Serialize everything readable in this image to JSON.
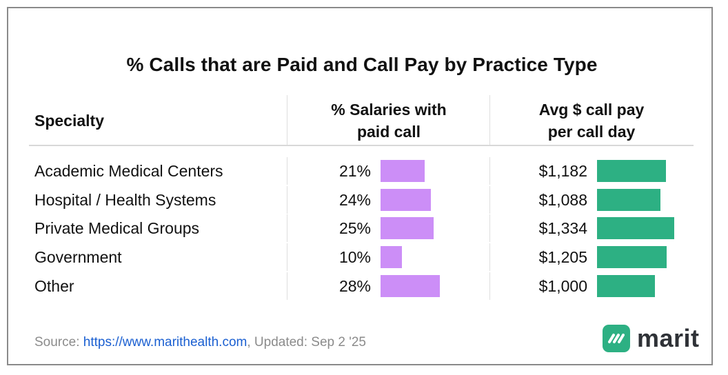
{
  "title": "% Calls that are Paid and Call Pay by Practice Type",
  "columns": {
    "specialty": "Specialty",
    "pct_line1": "% Salaries with",
    "pct_line2": "paid call",
    "pay_line1": "Avg $ call pay",
    "pay_line2": "per call day"
  },
  "rows": [
    {
      "specialty": "Academic Medical Centers",
      "pct_label": "21%",
      "pay_label": "$1,182"
    },
    {
      "specialty": "Hospital / Health Systems",
      "pct_label": "24%",
      "pay_label": "$1,088"
    },
    {
      "specialty": "Private Medical Groups",
      "pct_label": "25%",
      "pay_label": "$1,334"
    },
    {
      "specialty": "Government",
      "pct_label": "10%",
      "pay_label": "$1,205"
    },
    {
      "specialty": "Other",
      "pct_label": "28%",
      "pay_label": "$1,000"
    }
  ],
  "source": {
    "prefix": "Source: ",
    "url": "https://www.marithealth.com",
    "suffix": ", Updated: Sep 2 '25"
  },
  "logo": {
    "text": "marit",
    "icon": "marit-logo-icon"
  },
  "colors": {
    "pct_bar": "#cc8ef7",
    "pay_bar": "#2db083",
    "link": "#1a5fd1"
  },
  "chart_data": {
    "type": "table",
    "title": "% Calls that are Paid and Call Pay by Practice Type",
    "categories": [
      "Academic Medical Centers",
      "Hospital / Health Systems",
      "Private Medical Groups",
      "Government",
      "Other"
    ],
    "series": [
      {
        "name": "% Salaries with paid call",
        "values": [
          21,
          24,
          25,
          10,
          28
        ]
      },
      {
        "name": "Avg $ call pay per call day",
        "values": [
          1182,
          1088,
          1334,
          1205,
          1000
        ]
      }
    ]
  }
}
